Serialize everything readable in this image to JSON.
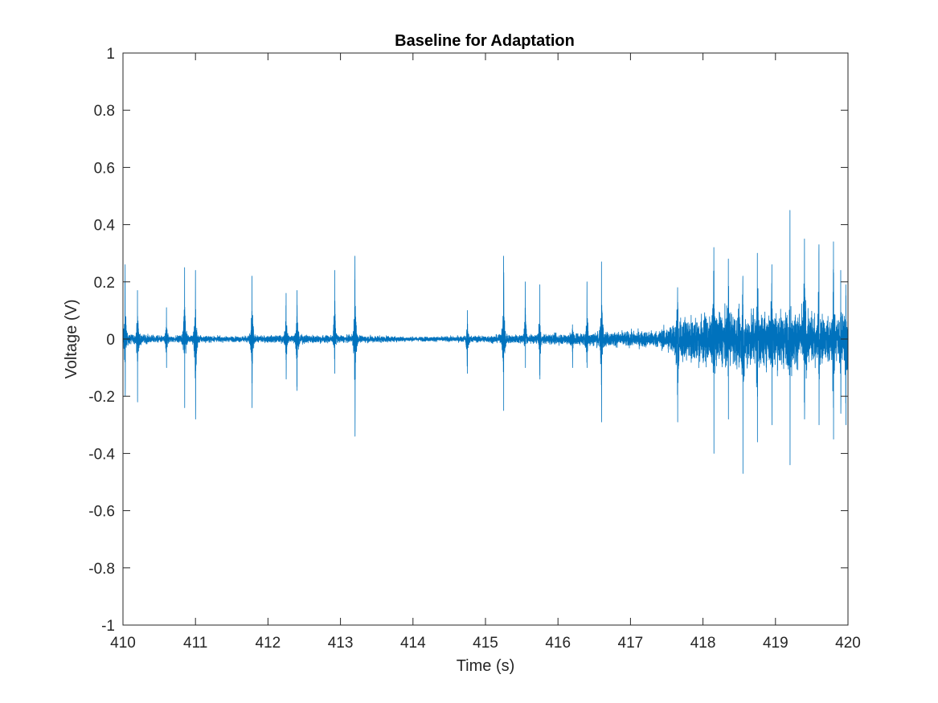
{
  "chart_data": {
    "type": "line",
    "title": "Baseline for Adaptation",
    "xlabel": "Time (s)",
    "ylabel": "Voltage (V)",
    "xlim": [
      410,
      420
    ],
    "ylim": [
      -1,
      1
    ],
    "xticks": [
      410,
      411,
      412,
      413,
      414,
      415,
      416,
      417,
      418,
      419,
      420
    ],
    "xtick_labels": [
      "410",
      "411",
      "412",
      "413",
      "414",
      "415",
      "416",
      "417",
      "418",
      "419",
      "420"
    ],
    "yticks": [
      -1,
      -0.8,
      -0.6,
      -0.4,
      -0.2,
      0,
      0.2,
      0.4,
      0.6,
      0.8,
      1
    ],
    "ytick_labels": [
      "-1",
      "-0.8",
      "-0.6",
      "-0.4",
      "-0.2",
      "0",
      "0.2",
      "0.4",
      "0.6",
      "0.8",
      "1"
    ],
    "grid": false,
    "line_color": "#0072BD",
    "series": [
      {
        "noise_envelope": {
          "x": [
            410.0,
            410.5,
            411.0,
            411.5,
            412.0,
            412.5,
            413.0,
            413.5,
            414.0,
            414.5,
            415.0,
            415.5,
            416.0,
            416.5,
            417.0,
            417.4,
            417.6,
            417.8,
            418.0,
            418.5,
            419.0,
            419.5,
            420.0
          ],
          "amplitude": [
            0.035,
            0.02,
            0.02,
            0.015,
            0.02,
            0.025,
            0.02,
            0.02,
            0.012,
            0.015,
            0.02,
            0.025,
            0.03,
            0.04,
            0.045,
            0.05,
            0.1,
            0.14,
            0.15,
            0.16,
            0.17,
            0.15,
            0.14
          ]
        },
        "spikes": [
          {
            "x": 410.03,
            "max": 0.26,
            "min": -0.2
          },
          {
            "x": 410.2,
            "max": 0.17,
            "min": -0.22
          },
          {
            "x": 410.6,
            "max": 0.11,
            "min": -0.1
          },
          {
            "x": 410.85,
            "max": 0.25,
            "min": -0.24
          },
          {
            "x": 411.0,
            "max": 0.24,
            "min": -0.28
          },
          {
            "x": 411.78,
            "max": 0.22,
            "min": -0.24
          },
          {
            "x": 412.25,
            "max": 0.16,
            "min": -0.14
          },
          {
            "x": 412.4,
            "max": 0.17,
            "min": -0.18
          },
          {
            "x": 412.92,
            "max": 0.24,
            "min": -0.12
          },
          {
            "x": 413.2,
            "max": 0.29,
            "min": -0.34
          },
          {
            "x": 414.75,
            "max": 0.1,
            "min": -0.12
          },
          {
            "x": 415.25,
            "max": 0.29,
            "min": -0.25
          },
          {
            "x": 415.55,
            "max": 0.2,
            "min": -0.1
          },
          {
            "x": 415.75,
            "max": 0.19,
            "min": -0.14
          },
          {
            "x": 416.2,
            "max": 0.05,
            "min": -0.1
          },
          {
            "x": 416.4,
            "max": 0.2,
            "min": -0.1
          },
          {
            "x": 416.6,
            "max": 0.27,
            "min": -0.29
          },
          {
            "x": 417.65,
            "max": 0.18,
            "min": -0.29
          },
          {
            "x": 418.15,
            "max": 0.32,
            "min": -0.4
          },
          {
            "x": 418.35,
            "max": 0.28,
            "min": -0.28
          },
          {
            "x": 418.55,
            "max": 0.22,
            "min": -0.47
          },
          {
            "x": 418.75,
            "max": 0.3,
            "min": -0.36
          },
          {
            "x": 418.95,
            "max": 0.26,
            "min": -0.3
          },
          {
            "x": 419.2,
            "max": 0.45,
            "min": -0.44
          },
          {
            "x": 419.4,
            "max": 0.35,
            "min": -0.28
          },
          {
            "x": 419.6,
            "max": 0.33,
            "min": -0.3
          },
          {
            "x": 419.8,
            "max": 0.34,
            "min": -0.35
          },
          {
            "x": 419.9,
            "max": 0.24,
            "min": -0.26
          },
          {
            "x": 419.97,
            "max": 0.19,
            "min": -0.3
          }
        ]
      }
    ]
  }
}
